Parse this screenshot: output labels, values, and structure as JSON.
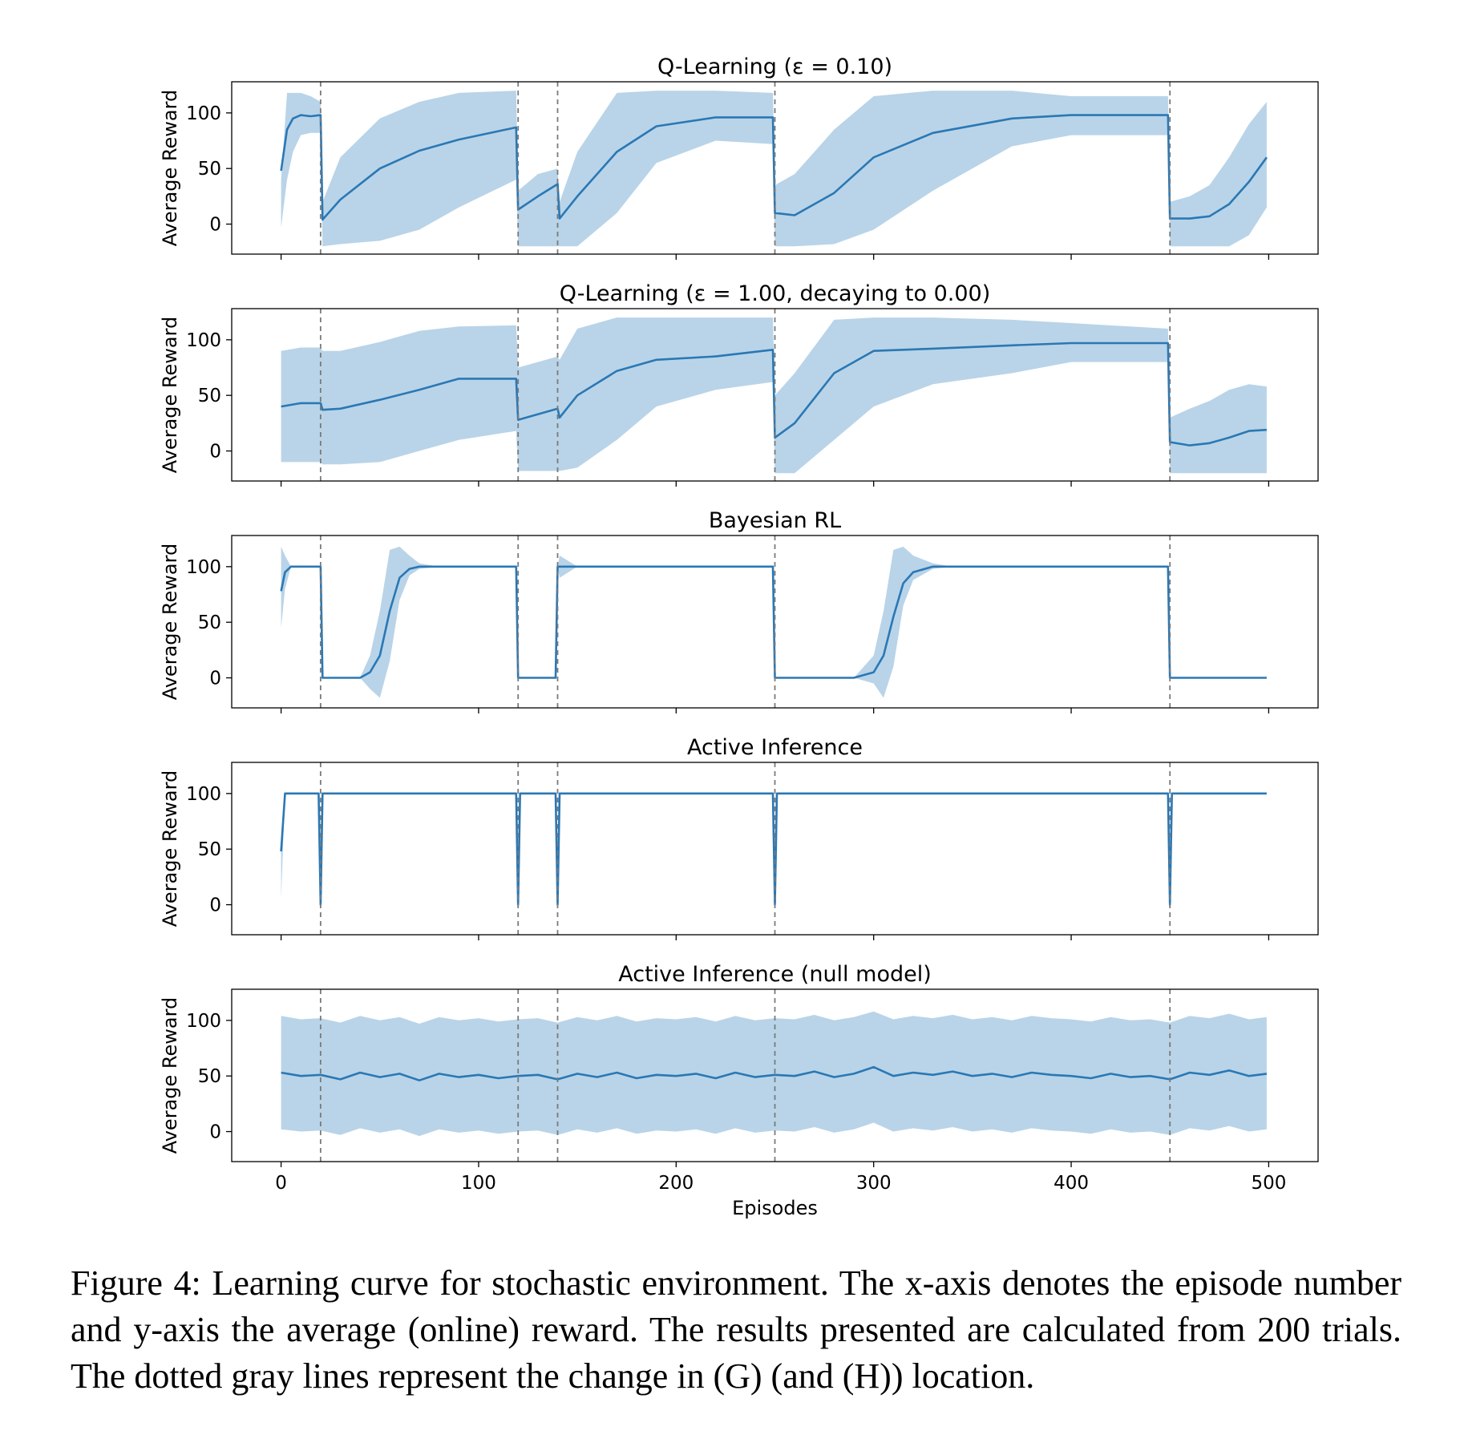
{
  "colors": {
    "line": "#2a78b5",
    "band": "#b9d4e8",
    "event_line": "#7a7a7a"
  },
  "x_label": "Episodes",
  "x_ticks": [
    0,
    100,
    200,
    300,
    400,
    500
  ],
  "y_ticks": [
    0,
    50,
    100
  ],
  "y_label": "Average Reward",
  "event_lines": [
    20,
    120,
    140,
    250,
    450
  ],
  "chart_data": [
    {
      "type": "line",
      "title": "Q-Learning (ε = 0.10)",
      "ylabel": "Average Reward",
      "xlim": [
        -25,
        525
      ],
      "ylim": [
        -27,
        128
      ],
      "series": [
        {
          "x": [
            0,
            3,
            6,
            10,
            15,
            20,
            21,
            30,
            50,
            70,
            90,
            119,
            120,
            130,
            140,
            141,
            150,
            170,
            190,
            220,
            249,
            250,
            260,
            280,
            300,
            330,
            370,
            400,
            449,
            450,
            460,
            470,
            480,
            490,
            499
          ],
          "y": [
            48,
            85,
            95,
            98,
            97,
            98,
            4,
            22,
            50,
            66,
            76,
            87,
            13,
            25,
            36,
            5,
            25,
            65,
            88,
            96,
            96,
            10,
            8,
            28,
            60,
            82,
            95,
            98,
            98,
            5,
            5,
            7,
            18,
            38,
            60
          ],
          "lower": [
            -3,
            40,
            65,
            80,
            82,
            82,
            -20,
            -18,
            -15,
            -5,
            15,
            40,
            -20,
            -20,
            -20,
            -20,
            -20,
            10,
            55,
            75,
            72,
            -20,
            -20,
            -18,
            -5,
            30,
            70,
            80,
            80,
            -20,
            -20,
            -20,
            -20,
            -10,
            15
          ],
          "upper": [
            40,
            118,
            118,
            118,
            115,
            110,
            20,
            60,
            95,
            110,
            118,
            120,
            30,
            45,
            50,
            20,
            65,
            118,
            120,
            120,
            118,
            35,
            45,
            85,
            115,
            120,
            120,
            115,
            115,
            20,
            25,
            35,
            60,
            90,
            110
          ]
        }
      ]
    },
    {
      "type": "line",
      "title": "Q-Learning (ε = 1.00, decaying to 0.00)",
      "ylabel": "Average Reward",
      "xlim": [
        -25,
        525
      ],
      "ylim": [
        -27,
        128
      ],
      "series": [
        {
          "x": [
            0,
            10,
            20,
            21,
            30,
            50,
            70,
            90,
            119,
            120,
            130,
            140,
            141,
            150,
            170,
            190,
            220,
            249,
            250,
            260,
            280,
            300,
            330,
            370,
            400,
            449,
            450,
            460,
            470,
            480,
            490,
            499
          ],
          "y": [
            40,
            43,
            43,
            37,
            38,
            46,
            55,
            65,
            65,
            28,
            33,
            38,
            30,
            50,
            72,
            82,
            85,
            91,
            12,
            25,
            70,
            90,
            92,
            95,
            97,
            97,
            8,
            5,
            7,
            12,
            18,
            19
          ],
          "lower": [
            -10,
            -10,
            -10,
            -12,
            -12,
            -10,
            0,
            10,
            18,
            -18,
            -18,
            -18,
            -18,
            -15,
            10,
            40,
            55,
            62,
            -20,
            -20,
            10,
            40,
            60,
            70,
            80,
            80,
            -20,
            -20,
            -20,
            -20,
            -20,
            -20
          ],
          "upper": [
            90,
            93,
            93,
            90,
            90,
            98,
            108,
            112,
            113,
            75,
            80,
            85,
            82,
            110,
            120,
            120,
            120,
            120,
            50,
            70,
            118,
            120,
            120,
            118,
            115,
            110,
            30,
            38,
            45,
            55,
            60,
            58
          ]
        }
      ]
    },
    {
      "type": "line",
      "title": "Bayesian RL",
      "ylabel": "Average Reward",
      "xlim": [
        -25,
        525
      ],
      "ylim": [
        -27,
        128
      ],
      "series": [
        {
          "x": [
            0,
            2,
            5,
            19,
            20,
            21,
            40,
            45,
            50,
            55,
            60,
            65,
            70,
            80,
            119,
            120,
            139,
            140,
            141,
            150,
            249,
            250,
            290,
            300,
            305,
            310,
            315,
            320,
            330,
            340,
            449,
            450,
            499
          ],
          "y": [
            78,
            95,
            100,
            100,
            100,
            0,
            0,
            5,
            20,
            60,
            90,
            98,
            100,
            100,
            100,
            0,
            0,
            100,
            100,
            100,
            100,
            0,
            0,
            5,
            20,
            55,
            85,
            95,
            100,
            100,
            100,
            0,
            0
          ],
          "lower": [
            45,
            80,
            100,
            100,
            100,
            0,
            0,
            -10,
            -18,
            15,
            70,
            92,
            98,
            100,
            100,
            0,
            0,
            100,
            90,
            100,
            100,
            0,
            0,
            -5,
            -18,
            10,
            65,
            88,
            98,
            100,
            100,
            0,
            0
          ],
          "upper": [
            118,
            110,
            100,
            100,
            100,
            0,
            0,
            20,
            60,
            115,
            118,
            110,
            103,
            100,
            100,
            0,
            0,
            100,
            110,
            100,
            100,
            0,
            0,
            20,
            60,
            115,
            118,
            110,
            103,
            100,
            100,
            0,
            0
          ]
        }
      ]
    },
    {
      "type": "line",
      "title": "Active Inference",
      "ylabel": "Average Reward",
      "xlim": [
        -25,
        525
      ],
      "ylim": [
        -27,
        128
      ],
      "series": [
        {
          "x": [
            0,
            2,
            19,
            20,
            21,
            119,
            120,
            121,
            139,
            140,
            141,
            249,
            250,
            251,
            449,
            450,
            451,
            499
          ],
          "y": [
            48,
            100,
            100,
            0,
            100,
            100,
            0,
            100,
            100,
            0,
            100,
            100,
            0,
            100,
            100,
            0,
            100,
            100
          ],
          "lower": [
            5,
            100,
            100,
            0,
            100,
            100,
            0,
            100,
            100,
            0,
            100,
            100,
            0,
            100,
            100,
            0,
            100,
            100
          ],
          "upper": [
            48,
            100,
            100,
            0,
            100,
            100,
            0,
            100,
            100,
            0,
            100,
            100,
            0,
            100,
            100,
            0,
            100,
            100
          ]
        }
      ]
    },
    {
      "type": "line",
      "title": "Active Inference (null model)",
      "ylabel": "Average Reward",
      "xlim": [
        -25,
        525
      ],
      "ylim": [
        -27,
        128
      ],
      "series": [
        {
          "x": [
            0,
            10,
            20,
            30,
            40,
            50,
            60,
            70,
            80,
            90,
            100,
            110,
            120,
            130,
            140,
            150,
            160,
            170,
            180,
            190,
            200,
            210,
            220,
            230,
            240,
            250,
            260,
            270,
            280,
            290,
            300,
            310,
            320,
            330,
            340,
            350,
            360,
            370,
            380,
            390,
            400,
            410,
            420,
            430,
            440,
            450,
            460,
            470,
            480,
            490,
            499
          ],
          "y": [
            53,
            50,
            51,
            47,
            53,
            49,
            52,
            46,
            52,
            49,
            51,
            48,
            50,
            51,
            47,
            52,
            49,
            53,
            48,
            51,
            50,
            52,
            48,
            53,
            49,
            51,
            50,
            54,
            49,
            52,
            58,
            50,
            53,
            51,
            54,
            50,
            52,
            49,
            53,
            51,
            50,
            48,
            52,
            49,
            50,
            47,
            53,
            51,
            55,
            50,
            52
          ],
          "lower": [
            2,
            0,
            1,
            -3,
            3,
            -1,
            2,
            -4,
            2,
            -1,
            1,
            -2,
            0,
            1,
            -3,
            2,
            -1,
            3,
            -2,
            1,
            0,
            2,
            -2,
            3,
            -1,
            1,
            0,
            4,
            -1,
            2,
            8,
            0,
            3,
            1,
            4,
            0,
            2,
            -1,
            3,
            1,
            0,
            -2,
            2,
            -1,
            0,
            -3,
            3,
            1,
            5,
            0,
            2
          ],
          "upper": [
            104,
            101,
            102,
            98,
            104,
            100,
            103,
            97,
            103,
            100,
            102,
            99,
            101,
            102,
            98,
            103,
            100,
            104,
            99,
            102,
            101,
            103,
            99,
            104,
            100,
            102,
            101,
            105,
            100,
            103,
            108,
            101,
            104,
            102,
            105,
            101,
            103,
            100,
            104,
            102,
            101,
            99,
            103,
            100,
            101,
            98,
            104,
            102,
            106,
            101,
            103
          ]
        }
      ]
    }
  ],
  "caption": "Figure 4: Learning curve for stochastic environment. The x-axis denotes the episode number and y-axis the average (online) reward. The results presented are calculated from 200 trials. The dotted gray lines represent the change in (G) (and (H)) location."
}
